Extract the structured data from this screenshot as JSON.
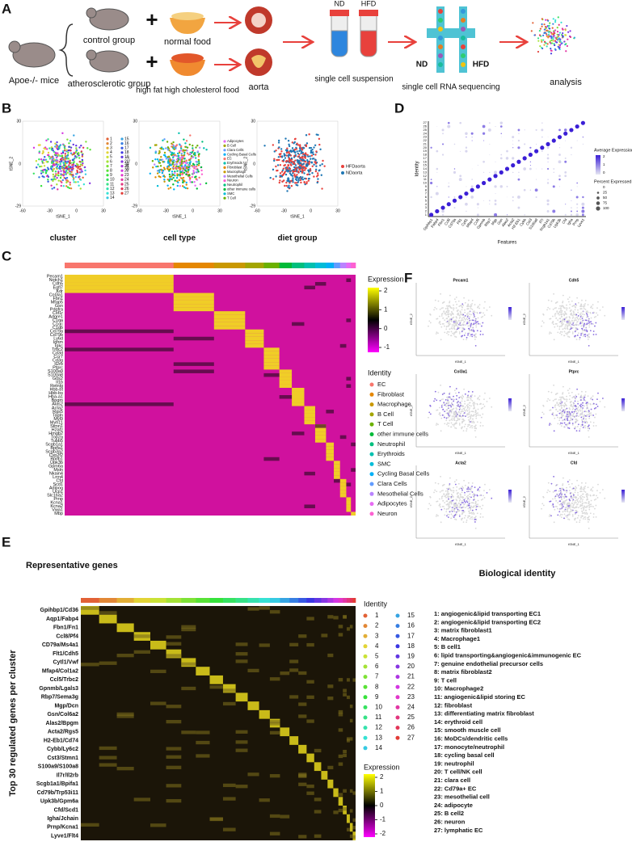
{
  "clusters": [
    1,
    2,
    3,
    4,
    5,
    6,
    7,
    8,
    9,
    10,
    11,
    12,
    13,
    14,
    15,
    16,
    17,
    18,
    19,
    20,
    21,
    22,
    23,
    24,
    25,
    26,
    27
  ],
  "panel_a": {
    "letter": "A",
    "mice": "Apoe-/- mice",
    "groups": [
      "control group",
      "atherosclerotic group"
    ],
    "foods": [
      "normal food",
      "high fat high cholesterol food"
    ],
    "aorta": "aorta",
    "tube_labels": [
      "ND",
      "HFD"
    ],
    "suspension": "single cell suspension",
    "chip_labels": [
      "ND",
      "HFD"
    ],
    "sequencing": "single cell RNA sequencing",
    "analysis": "analysis"
  },
  "panel_b": {
    "letter": "B",
    "captions": [
      "cluster",
      "cell type",
      "diet group"
    ],
    "x_label": "tSNE_1",
    "y_label": "tSNE_2",
    "xticks": [
      -60,
      -30,
      0,
      30
    ],
    "yticks": [
      -29,
      0,
      30
    ],
    "cell_types": [
      "Adipocytes",
      "B Cell",
      "Clara Cells",
      "Cycling Basal Cells",
      "EC",
      "Erythroids",
      "Fibroblast",
      "Macrophage",
      "Mesothelial Cells",
      "Neuron",
      "Neutrophil",
      "other immune cells",
      "SMC",
      "T Cell"
    ],
    "diet_groups": [
      {
        "name": "HFDaorta",
        "color": "#e8413c"
      },
      {
        "name": "NDaorta",
        "color": "#1f77b4"
      }
    ]
  },
  "panel_c": {
    "letter": "C",
    "genes": [
      "Pecam1",
      "Notch1",
      "Cdh5",
      "Egfl7",
      "Kdr",
      "Col3a1",
      "Fbn1",
      "Mfap5",
      "Gsn",
      "Pdgfra",
      "Csf1r",
      "Adgre1",
      "C1qa",
      "C1qc",
      "C1qb",
      "Cd79a",
      "Cd79b",
      "Ly6d",
      "Ighm",
      "Igkc",
      "Trbc2",
      "Cd3d",
      "Ccr7",
      "Cd3g",
      "Il2rb",
      "Ptprc",
      "S100a9",
      "S100a8",
      "G0s2",
      "Il1b",
      "Retnlg",
      "Hbb-bt",
      "Hbb-bs",
      "Hba-a1",
      "Bpgm",
      "Alas2",
      "Acta2",
      "Rgs5",
      "Tagln",
      "Myl9",
      "Myh11",
      "Stmn1",
      "H2afz",
      "Hmgb2",
      "Top2a",
      "Tubb5",
      "Scgb1a1",
      "Bpifa1",
      "Scgb3a2",
      "Cyp2f2",
      "Bpifb1",
      "Upk3b",
      "Gpm6a",
      "Msln",
      "Nkain4",
      "Lrrn4",
      "Cfd",
      "Scd1",
      "Adipoq",
      "Ucp1",
      "Slc16a2",
      "Prnp",
      "Kcna1",
      "Kcna2",
      "Vwa1",
      "Mbp"
    ],
    "legend_title": "Expression",
    "legend_ticks": [
      2,
      1,
      0,
      -1
    ],
    "identity_title": "Identity",
    "identities": [
      {
        "name": "EC",
        "color": "#F8766D"
      },
      {
        "name": "Fibroblast",
        "color": "#E58700"
      },
      {
        "name": "Macrophage",
        "color": "#C99800"
      },
      {
        "name": "B Cell",
        "color": "#A3A500"
      },
      {
        "name": "T Cell",
        "color": "#6BB100"
      },
      {
        "name": "other immune cells",
        "color": "#00BA38"
      },
      {
        "name": "Neutrophil",
        "color": "#00BF7D"
      },
      {
        "name": "Erythroids",
        "color": "#00C0AF"
      },
      {
        "name": "SMC",
        "color": "#00BCD8"
      },
      {
        "name": "Cycling Basal Cells",
        "color": "#00B0F6"
      },
      {
        "name": "Clara Cells",
        "color": "#619CFF"
      },
      {
        "name": "Mesothelial Cells",
        "color": "#B983FF"
      },
      {
        "name": "Adipocytes",
        "color": "#E76BF3"
      },
      {
        "name": "Neuron",
        "color": "#FD61D1"
      }
    ]
  },
  "panel_d": {
    "letter": "D",
    "x_label": "Features",
    "y_label": "Identity",
    "features": [
      "Gpihbp1",
      "Fabp4",
      "Fbn1",
      "Ccl8",
      "Cd79a",
      "Flt1",
      "Cytl1",
      "Mfap4",
      "Ccl5",
      "Gpnmb",
      "Rbp7",
      "Mgp",
      "Gsn",
      "Alas2",
      "Acta2",
      "H2-Eb1",
      "Cybb",
      "Cst3",
      "S100a9",
      "Il7r",
      "Scgb1a1",
      "Cd79b",
      "Upk3b",
      "Cfd",
      "Igha",
      "Prnp",
      "Lyve1"
    ],
    "avg_title": "Average Expression",
    "avg_ticks": [
      2,
      1,
      0
    ],
    "pct_title": "Percent Expressed",
    "pct_ticks": [
      0,
      25,
      50,
      75,
      100
    ]
  },
  "panel_e": {
    "letter": "E",
    "genes_title": "Representative genes",
    "y_label": "Top 30 regulated genes per cluster",
    "genes": [
      "Gpihbp1/Cd36",
      "Aqp1/Fabp4",
      "Fbn1/Fn1",
      "Ccl8/Pf4",
      "CD79a/Ms4a1",
      "Flt1/Cdh5",
      "Cytl1/Vwf",
      "Mfap4/Col1a2",
      "Ccl5/Trbc2",
      "Gpnmb/Lgals3",
      "Rbp7/Sema3g",
      "Mgp/Dcn",
      "Gsn/Col6a2",
      "Alas2/Bpgm",
      "Acta2/Rgs5",
      "H2-Eb1/Cd74",
      "Cybb/Ly6c2",
      "Cst3/Stmn1",
      "S100a9/S100a8",
      "Il7r/Il2rb",
      "Scgb1a1/Bpifa1",
      "Cd79b/Trp53i11",
      "Upk3b/Gpm6a",
      "Cfd/Scd1",
      "Igha/Jchain",
      "Prnp/Kcna1",
      "Lyve1/Flt4"
    ],
    "identity_title": "Identity",
    "legend_title": "Expression",
    "legend_ticks": [
      2,
      1,
      0,
      -1,
      -2
    ],
    "bio_title": "Biological identity",
    "bio_identities": [
      "1: angiogenic&lipid transporting EC1",
      "2: angiogenic&lipid transporting EC2",
      "3: matrix fibroblast1",
      "4: Macrophage1",
      "5: B cell1",
      "6: lipid transporting&angiogenic&immunogenic EC",
      "7: genuine endothelial precursor cells",
      "8: matrix fibroblast2",
      "9: T cell",
      "10: Macrophage2",
      "11: angiogenic&lipid storing EC",
      "12: fibroblast",
      "13: differentiating matrix fibroblast",
      "14: erythroid cell",
      "15: smooth muscle cell",
      "16: MoDCs/dendritic cells",
      "17: monocyte/neutrophil",
      "18: cycling basal cell",
      "19: neutrophil",
      "20: T cell/NK cell",
      "21: clara cell",
      "22: Cd79a+ EC",
      "23: mesothelial cell",
      "24: adipocyte",
      "25: B cell2",
      "26: neuron",
      "27: lymphatic EC"
    ]
  },
  "panel_f": {
    "letter": "F",
    "genes": [
      "Pecam1",
      "Cdh5",
      "Col3a1",
      "Ptprc",
      "Acta2",
      "Cfd"
    ]
  }
}
